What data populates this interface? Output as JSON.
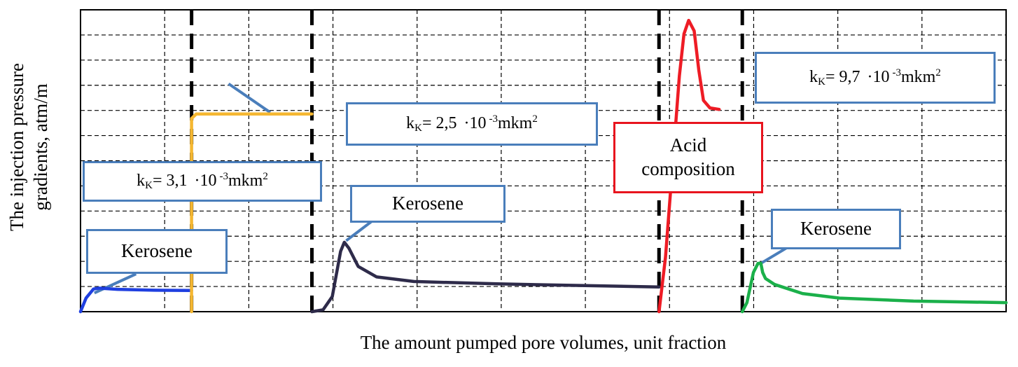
{
  "chart_data": {
    "type": "line",
    "title": "",
    "xlabel": "The amount pumped pore volumes, unit fraction",
    "ylabel_lines": [
      "The injection pressure",
      "gradients, atm/m"
    ],
    "grid": true,
    "xlim": [
      0,
      1
    ],
    "ylim": [
      0,
      1
    ],
    "x_ticks_shown": false,
    "y_ticks_shown": false,
    "stage_boundaries": [
      0.12,
      0.25,
      0.625,
      0.715
    ],
    "series": [
      {
        "color": "#1f3fe0",
        "points": [
          [
            0.0,
            0.0
          ],
          [
            0.006,
            0.045
          ],
          [
            0.014,
            0.075
          ],
          [
            0.02,
            0.078
          ],
          [
            0.04,
            0.074
          ],
          [
            0.08,
            0.071
          ],
          [
            0.12,
            0.07
          ]
        ]
      },
      {
        "color": "#f5b731",
        "points": [
          [
            0.12,
            0.0
          ],
          [
            0.12,
            0.64
          ],
          [
            0.125,
            0.655
          ],
          [
            0.25,
            0.655
          ]
        ]
      },
      {
        "color": "#2e2b4a",
        "points": [
          [
            0.25,
            0.0
          ],
          [
            0.262,
            0.006
          ],
          [
            0.272,
            0.05
          ],
          [
            0.281,
            0.2
          ],
          [
            0.285,
            0.23
          ],
          [
            0.29,
            0.21
          ],
          [
            0.3,
            0.15
          ],
          [
            0.32,
            0.115
          ],
          [
            0.36,
            0.1
          ],
          [
            0.45,
            0.092
          ],
          [
            0.55,
            0.086
          ],
          [
            0.625,
            0.082
          ]
        ]
      },
      {
        "color": "#ee1c25",
        "points": [
          [
            0.625,
            0.0
          ],
          [
            0.632,
            0.18
          ],
          [
            0.64,
            0.5
          ],
          [
            0.647,
            0.78
          ],
          [
            0.652,
            0.92
          ],
          [
            0.657,
            0.965
          ],
          [
            0.663,
            0.93
          ],
          [
            0.668,
            0.8
          ],
          [
            0.673,
            0.7
          ],
          [
            0.68,
            0.675
          ],
          [
            0.69,
            0.67
          ]
        ]
      },
      {
        "color": "#1bb04a",
        "points": [
          [
            0.715,
            0.0
          ],
          [
            0.72,
            0.03
          ],
          [
            0.727,
            0.13
          ],
          [
            0.732,
            0.16
          ],
          [
            0.735,
            0.16
          ],
          [
            0.737,
            0.13
          ],
          [
            0.74,
            0.11
          ],
          [
            0.75,
            0.09
          ],
          [
            0.78,
            0.06
          ],
          [
            0.82,
            0.045
          ],
          [
            0.9,
            0.035
          ],
          [
            1.0,
            0.03
          ]
        ]
      }
    ],
    "annotations": [
      {
        "text": "Kerosene"
      },
      {
        "kk_prefix": "k",
        "kk_sub": "K",
        "kk_value": "= 3,1",
        "kk_exp": "-3",
        "kk_unit": "mkm",
        "kk_unit_exp": "2"
      },
      {
        "text": "Kerosene"
      },
      {
        "kk_prefix": "k",
        "kk_sub": "K",
        "kk_value": "= 2,5",
        "kk_exp": "-3",
        "kk_unit": "mkm",
        "kk_unit_exp": "2"
      },
      {
        "text_lines": [
          "Acid",
          "composition"
        ]
      },
      {
        "kk_prefix": "k",
        "kk_sub": "K",
        "kk_value": "= 9,7",
        "kk_exp": "-3",
        "kk_unit": "mkm",
        "kk_unit_exp": "2"
      },
      {
        "text": "Kerosene"
      }
    ],
    "callout_colors": {
      "default": "#4a7ebb",
      "acid": "#e8141e"
    }
  }
}
